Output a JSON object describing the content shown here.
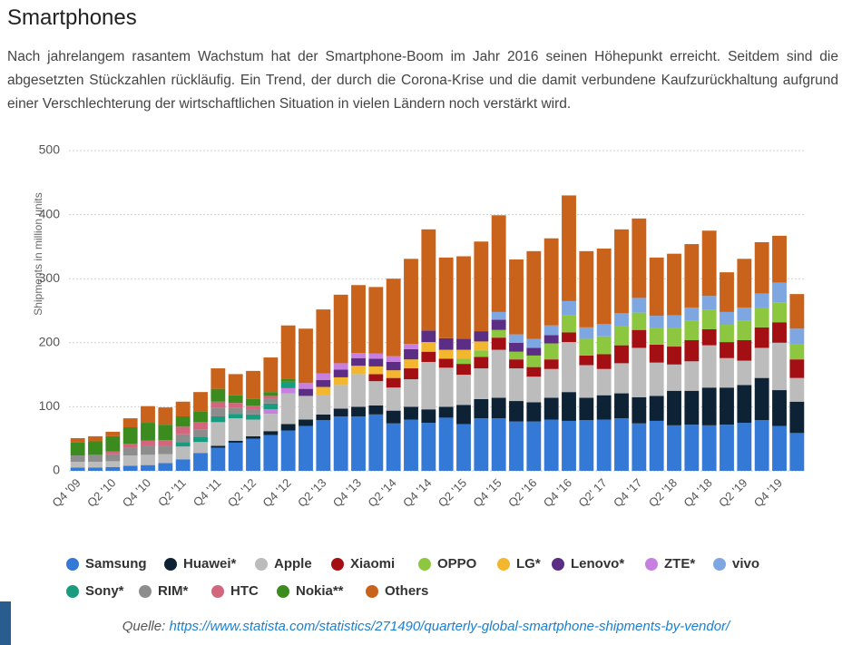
{
  "title": "Smartphones",
  "intro": "Nach jahrelangem rasantem Wachstum hat der Smartphone-Boom im Jahr 2016 seinen Höhepunkt erreicht. Seitdem sind die abgesetzten Stückzahlen rückläufig. Ein Trend, der durch die Corona-Krise und die damit verbundene Kaufzurückhaltung aufgrund einer Verschlechterung der wirtschaftlichen Situation in vielen Ländern noch verstärkt wird.",
  "chart_data": {
    "type": "stacked_bar",
    "y_label": "Shipments in million units",
    "ylim": [
      0,
      500
    ],
    "yticks": [
      0,
      100,
      200,
      300,
      400,
      500
    ],
    "grid": true,
    "categories": [
      "Q4 '09",
      null,
      "Q2 '10",
      null,
      "Q4 '10",
      null,
      "Q2 '11",
      null,
      "Q4 '11",
      null,
      "Q2 '12",
      null,
      "Q4 '12",
      null,
      "Q2 '13",
      null,
      "Q4 '13",
      null,
      "Q2 '14",
      null,
      "Q4 '14",
      null,
      "Q2 '15",
      null,
      "Q4 '15",
      null,
      "Q2 '16",
      null,
      "Q4 '16",
      null,
      "Q2' 17",
      null,
      "Q4 '17",
      null,
      "Q2 '18",
      null,
      "Q4 '18",
      null,
      "Q2 '19",
      null,
      "Q4 '19",
      null
    ],
    "series": [
      {
        "name": "Samsung",
        "color": "#3479d6",
        "values": [
          5,
          5,
          6,
          8,
          9,
          12,
          18,
          28,
          36,
          44,
          50,
          56,
          63,
          70,
          79,
          85,
          85,
          88,
          74,
          80,
          75,
          83,
          73,
          82,
          82,
          77,
          77,
          80,
          78,
          79,
          80,
          82,
          74,
          78,
          71,
          72,
          71,
          72,
          75,
          79,
          70,
          59
        ]
      },
      {
        "name": "Huawei*",
        "color": "#0e2236",
        "values": [
          null,
          null,
          null,
          null,
          null,
          null,
          null,
          null,
          3,
          3,
          4,
          6,
          10,
          10,
          9,
          12,
          15,
          14,
          20,
          20,
          21,
          17,
          30,
          30,
          32,
          32,
          30,
          34,
          45,
          35,
          38,
          39,
          41,
          39,
          54,
          53,
          59,
          58,
          59,
          66,
          56,
          49
        ]
      },
      {
        "name": "Apple",
        "color": "#bcbcbc",
        "values": [
          9,
          9,
          9,
          16,
          16,
          14,
          20,
          17,
          37,
          35,
          26,
          27,
          48,
          37,
          31,
          37,
          51,
          38,
          36,
          43,
          74,
          61,
          47,
          48,
          75,
          51,
          40,
          45,
          78,
          51,
          41,
          47,
          77,
          52,
          41,
          46,
          66,
          46,
          38,
          47,
          74,
          37
        ]
      },
      {
        "name": "Xiaomi",
        "color": "#a30f12",
        "values": [
          null,
          null,
          null,
          null,
          null,
          null,
          null,
          null,
          null,
          null,
          null,
          null,
          null,
          null,
          null,
          null,
          null,
          11,
          15,
          17,
          16,
          14,
          17,
          18,
          19,
          14,
          15,
          15,
          15,
          15,
          23,
          28,
          28,
          28,
          28,
          33,
          25,
          25,
          32,
          32,
          32,
          29
        ]
      },
      {
        "name": "OPPO",
        "color": "#8dc63f",
        "values": [
          null,
          null,
          null,
          null,
          null,
          null,
          null,
          null,
          null,
          null,
          null,
          null,
          null,
          null,
          null,
          null,
          null,
          null,
          null,
          null,
          null,
          null,
          8,
          10,
          12,
          12,
          18,
          25,
          27,
          26,
          28,
          30,
          27,
          26,
          29,
          31,
          30,
          27,
          30,
          31,
          31,
          23
        ]
      },
      {
        "name": "LG*",
        "color": "#f2b72e",
        "values": [
          null,
          null,
          null,
          null,
          null,
          null,
          null,
          null,
          null,
          null,
          null,
          null,
          null,
          null,
          12,
          12,
          13,
          12,
          12,
          14,
          15,
          14,
          14,
          14,
          null,
          null,
          null,
          null,
          null,
          null,
          null,
          null,
          null,
          null,
          null,
          null,
          null,
          null,
          null,
          null,
          null,
          null
        ]
      },
      {
        "name": "Lenovo*",
        "color": "#5c2d84",
        "values": [
          null,
          null,
          null,
          null,
          null,
          null,
          null,
          null,
          null,
          null,
          null,
          null,
          null,
          11,
          11,
          12,
          12,
          12,
          13,
          16,
          18,
          18,
          17,
          16,
          16,
          14,
          12,
          13,
          null,
          null,
          null,
          null,
          null,
          null,
          null,
          null,
          null,
          null,
          null,
          null,
          null,
          null
        ]
      },
      {
        "name": "ZTE*",
        "color": "#c77fe0",
        "values": [
          null,
          null,
          null,
          null,
          null,
          null,
          null,
          null,
          null,
          null,
          null,
          7,
          8,
          9,
          10,
          10,
          8,
          8,
          9,
          8,
          null,
          null,
          null,
          null,
          null,
          null,
          null,
          null,
          null,
          null,
          null,
          null,
          null,
          null,
          null,
          null,
          null,
          null,
          null,
          null,
          null,
          null
        ]
      },
      {
        "name": "vivo",
        "color": "#7ea7e2",
        "values": [
          null,
          null,
          null,
          null,
          null,
          null,
          null,
          null,
          null,
          null,
          null,
          null,
          null,
          null,
          null,
          null,
          null,
          null,
          null,
          null,
          null,
          null,
          null,
          null,
          12,
          13,
          14,
          15,
          22,
          18,
          19,
          20,
          23,
          19,
          20,
          20,
          22,
          20,
          21,
          22,
          31,
          25
        ]
      },
      {
        "name": "Sony*",
        "color": "#179c80",
        "values": [
          null,
          null,
          null,
          null,
          null,
          null,
          7,
          8,
          9,
          7,
          8,
          9,
          10,
          null,
          null,
          null,
          null,
          null,
          null,
          null,
          null,
          null,
          null,
          null,
          null,
          null,
          null,
          null,
          null,
          null,
          null,
          null,
          null,
          null,
          null,
          null,
          null,
          null,
          null,
          null,
          null,
          null
        ]
      },
      {
        "name": "RIM*",
        "color": "#8d8d8d",
        "values": [
          10,
          11,
          11,
          12,
          14,
          13,
          12,
          11,
          13,
          10,
          7,
          7,
          null,
          null,
          null,
          null,
          null,
          null,
          null,
          null,
          null,
          null,
          null,
          null,
          null,
          null,
          null,
          null,
          null,
          null,
          null,
          null,
          null,
          null,
          null,
          null,
          null,
          null,
          null,
          null,
          null,
          null
        ]
      },
      {
        "name": "HTC",
        "color": "#d2667c",
        "values": [
          null,
          null,
          4,
          6,
          8,
          9,
          12,
          12,
          10,
          7,
          7,
          5,
          null,
          null,
          null,
          null,
          null,
          null,
          null,
          null,
          null,
          null,
          null,
          null,
          null,
          null,
          null,
          null,
          null,
          null,
          null,
          null,
          null,
          null,
          null,
          null,
          null,
          null,
          null,
          null,
          null,
          null
        ]
      },
      {
        "name": "Nokia**",
        "color": "#3b8b1e",
        "values": [
          20,
          21,
          24,
          26,
          28,
          24,
          16,
          17,
          20,
          12,
          10,
          6,
          5,
          null,
          null,
          null,
          null,
          null,
          null,
          null,
          null,
          null,
          null,
          null,
          null,
          null,
          null,
          null,
          null,
          null,
          null,
          null,
          null,
          null,
          null,
          null,
          null,
          null,
          null,
          null,
          null,
          null
        ]
      },
      {
        "name": "Others",
        "color": "#c9631b",
        "values": [
          7,
          8,
          7,
          14,
          26,
          27,
          23,
          30,
          32,
          33,
          44,
          54,
          83,
          85,
          100,
          107,
          106,
          104,
          121,
          133,
          158,
          126,
          129,
          140,
          151,
          117,
          137,
          136,
          165,
          119,
          118,
          131,
          124,
          91,
          96,
          99,
          102,
          62,
          76,
          80,
          73,
          54
        ]
      }
    ]
  },
  "source": {
    "label": "Quelle:",
    "url": "https://www.statista.com/statistics/271490/quarterly-global-smartphone-shipments-by-vendor/"
  }
}
